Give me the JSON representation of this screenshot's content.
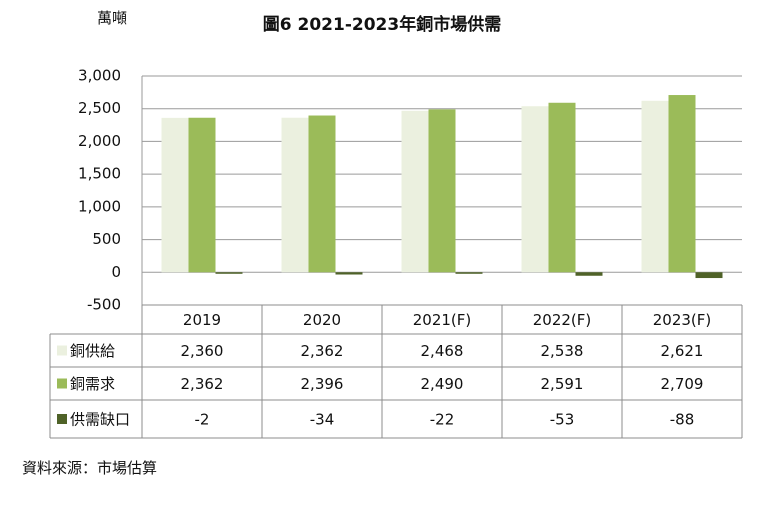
{
  "unit_label": "萬噸",
  "source_note": "資料來源：市場估算",
  "colors": {
    "supply": "#ebf0df",
    "demand": "#9bbb59",
    "gap": "#4f6228",
    "grid": "#9a9a9a",
    "border": "#8c8c8c"
  },
  "chart_data": {
    "type": "bar",
    "title": "圖6 2021-2023年銅市場供需",
    "ylabel": "萬噸",
    "ylim": [
      -500,
      3000
    ],
    "yticks": [
      3000,
      2500,
      2000,
      1500,
      1000,
      500,
      0,
      -500
    ],
    "ytick_labels": [
      "3,000",
      "2,500",
      "2,000",
      "1,500",
      "1,000",
      "500",
      "0",
      "-500"
    ],
    "categories": [
      "2019",
      "2020",
      "2021(F)",
      "2022(F)",
      "2023(F)"
    ],
    "series": [
      {
        "name": "銅供給",
        "values": [
          2360,
          2362,
          2468,
          2538,
          2621
        ],
        "labels": [
          "2,360",
          "2,362",
          "2,468",
          "2,538",
          "2,621"
        ]
      },
      {
        "name": "銅需求",
        "values": [
          2362,
          2396,
          2490,
          2591,
          2709
        ],
        "labels": [
          "2,362",
          "2,396",
          "2,490",
          "2,591",
          "2,709"
        ]
      },
      {
        "name": "供需缺口",
        "values": [
          -2,
          -34,
          -22,
          -53,
          -88
        ],
        "labels": [
          "-2",
          "-34",
          "-22",
          "-53",
          "-88"
        ]
      }
    ]
  }
}
